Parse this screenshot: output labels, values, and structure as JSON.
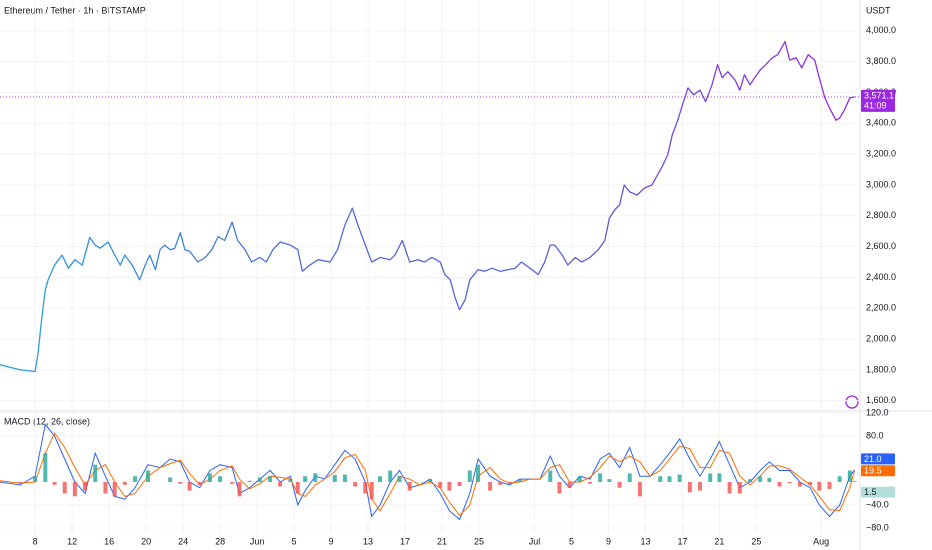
{
  "chart_data": [
    {
      "type": "line",
      "title": "Ethereum / Tether · 1h · BITSTAMP",
      "unit": "USDT",
      "x": [
        4.2,
        6.4,
        8.0,
        8.3,
        8.7,
        9.1,
        9.4,
        10.1,
        10.9,
        11.6,
        12.3,
        13.1,
        13.9,
        14.5,
        15.0,
        15.9,
        16.6,
        17.2,
        17.7,
        18.5,
        19.3,
        19.9,
        20.4,
        21.0,
        21.5,
        22.0,
        22.6,
        23.1,
        23.7,
        24.2,
        24.7,
        25.6,
        26.4,
        27.1,
        27.8,
        28.5,
        29.3,
        29.9,
        30.7,
        31.4,
        32.3,
        33.0,
        33.7,
        34.5,
        35.6,
        36.4,
        36.9,
        37.7,
        38.6,
        39.9,
        40.7,
        41.5,
        42.3,
        42.9,
        43.7,
        44.4,
        45.3,
        46.4,
        46.9,
        47.7,
        48.5,
        49.4,
        50.1,
        50.9,
        51.8,
        52.3,
        52.9,
        53.4,
        53.9,
        54.5,
        55.0,
        55.9,
        56.6,
        57.4,
        58.3,
        59.1,
        59.9,
        60.6,
        61.5,
        62.4,
        63.1,
        63.7,
        64.2,
        65.0,
        65.6,
        66.4,
        67.1,
        68.0,
        68.9,
        69.6,
        70.1,
        70.7,
        71.2,
        71.7,
        72.3,
        73.1,
        73.9,
        74.7,
        75.3,
        75.9,
        76.4,
        76.9,
        77.5,
        77.9,
        78.6,
        79.2,
        79.9,
        80.5,
        81.2,
        81.8,
        82.3,
        82.9,
        83.7,
        84.2,
        84.7,
        85.3,
        85.8,
        86.4,
        87.0,
        87.7,
        88.3,
        89.1,
        89.6,
        90.3,
        90.9,
        91.6,
        92.3,
        92.8,
        93.4,
        93.9,
        94.6,
        95.0,
        95.5,
        96.1,
        96.6
      ],
      "series": [
        {
          "values": [
            1833,
            1800,
            1790,
            1900,
            2125,
            2320,
            2385,
            2480,
            2545,
            2460,
            2515,
            2480,
            2660,
            2610,
            2590,
            2630,
            2545,
            2480,
            2545,
            2480,
            2385,
            2480,
            2545,
            2450,
            2580,
            2610,
            2580,
            2590,
            2690,
            2580,
            2570,
            2500,
            2530,
            2580,
            2665,
            2640,
            2760,
            2640,
            2580,
            2500,
            2530,
            2500,
            2580,
            2630,
            2610,
            2580,
            2440,
            2480,
            2515,
            2500,
            2580,
            2740,
            2850,
            2740,
            2610,
            2500,
            2530,
            2515,
            2545,
            2640,
            2500,
            2515,
            2500,
            2530,
            2500,
            2420,
            2385,
            2270,
            2190,
            2255,
            2385,
            2450,
            2440,
            2460,
            2440,
            2450,
            2460,
            2500,
            2460,
            2420,
            2500,
            2610,
            2610,
            2545,
            2480,
            2530,
            2500,
            2530,
            2580,
            2640,
            2785,
            2840,
            2870,
            3000,
            2955,
            2935,
            2980,
            3000,
            3065,
            3130,
            3195,
            3325,
            3420,
            3500,
            3630,
            3585,
            3615,
            3540,
            3650,
            3780,
            3695,
            3735,
            3680,
            3615,
            3715,
            3650,
            3695,
            3745,
            3780,
            3825,
            3845,
            3930,
            3810,
            3825,
            3760,
            3845,
            3810,
            3695,
            3565,
            3500,
            3420,
            3435,
            3485,
            3565,
            3571.1
          ],
          "colors": [
            "#25a3e2",
            "#4f6fd9",
            "#5a5fd8",
            "#a020f0"
          ],
          "last_label": "3,571.1",
          "countdown": "41:09",
          "label_color": "#9c27e0"
        }
      ],
      "xlim": [
        4.2,
        97.2
      ],
      "ylim": [
        1540,
        4200
      ],
      "yticks": [
        {
          "value": 1600,
          "label": "1,600.0"
        },
        {
          "value": 1800,
          "label": "1,800.0"
        },
        {
          "value": 2000,
          "label": "2,000.0"
        },
        {
          "value": 2200,
          "label": "2,200.0"
        },
        {
          "value": 2400,
          "label": "2,400.0"
        },
        {
          "value": 2600,
          "label": "2,600.0"
        },
        {
          "value": 2800,
          "label": "2,800.0"
        },
        {
          "value": 3000,
          "label": "3,000.0"
        },
        {
          "value": 3200,
          "label": "3,200.0"
        },
        {
          "value": 3400,
          "label": "3,400.0"
        },
        {
          "value": 3600,
          "label": "3,600.0"
        },
        {
          "value": 3800,
          "label": "3,800.0"
        },
        {
          "value": 4000,
          "label": "4,000.0"
        }
      ],
      "grid": true
    },
    {
      "type": "macd",
      "title": "MACD (12, 26, close)",
      "x": [
        4.2,
        6.4,
        8.0,
        9.1,
        10.1,
        11.2,
        12.3,
        13.4,
        14.5,
        15.6,
        16.6,
        17.7,
        18.8,
        20.2,
        21.5,
        22.6,
        23.7,
        24.7,
        25.8,
        26.9,
        28.0,
        29.3,
        30.1,
        31.2,
        32.3,
        33.4,
        34.5,
        35.6,
        36.4,
        37.2,
        38.3,
        39.3,
        40.4,
        41.5,
        42.6,
        43.7,
        44.4,
        45.3,
        46.4,
        47.4,
        48.5,
        49.6,
        50.7,
        51.8,
        52.8,
        53.9,
        55.0,
        55.9,
        57.2,
        58.3,
        59.3,
        60.4,
        61.5,
        62.6,
        63.7,
        64.7,
        65.8,
        66.9,
        68.0,
        69.1,
        70.1,
        71.2,
        72.3,
        73.4,
        74.5,
        75.6,
        76.6,
        77.7,
        78.8,
        79.9,
        81.0,
        82.0,
        83.1,
        84.2,
        85.3,
        86.4,
        87.4,
        88.5,
        89.6,
        90.7,
        91.8,
        92.8,
        93.9,
        95.0,
        96.1,
        96.6
      ],
      "series": [
        {
          "kind": "histogram",
          "color": "#26a69a",
          "negative_color": "#ef5350",
          "label_color": "#b2dfdb",
          "last_label": "1.5",
          "values": [
            -2,
            -3,
            10,
            50,
            -5,
            -20,
            -25,
            -15,
            30,
            -20,
            -25,
            -5,
            10,
            20,
            0,
            8,
            -3,
            -15,
            -5,
            15,
            10,
            -3,
            -25,
            2,
            8,
            10,
            -8,
            5,
            -20,
            10,
            15,
            0,
            12,
            13,
            -8,
            -20,
            -30,
            10,
            20,
            10,
            -15,
            0,
            5,
            -10,
            -15,
            -7,
            20,
            30,
            -15,
            -5,
            -3,
            5,
            0,
            0,
            20,
            -20,
            -10,
            10,
            -3,
            15,
            5,
            -10,
            15,
            -25,
            0,
            10,
            10,
            13,
            -18,
            -15,
            15,
            15,
            -20,
            -20,
            5,
            10,
            7,
            -8,
            -2,
            -8,
            -5,
            -15,
            -12,
            10,
            20,
            1.5
          ]
        },
        {
          "kind": "line",
          "color": "#ff6d00",
          "last_label": "19.5",
          "values": [
            2,
            -2,
            0,
            50,
            85,
            60,
            25,
            -5,
            20,
            30,
            0,
            -25,
            -20,
            10,
            25,
            32,
            38,
            15,
            -5,
            5,
            20,
            28,
            5,
            -12,
            -3,
            10,
            8,
            5,
            -20,
            -25,
            -5,
            5,
            18,
            42,
            48,
            20,
            -30,
            -50,
            -20,
            10,
            5,
            -5,
            0,
            -10,
            -35,
            -58,
            -40,
            10,
            25,
            5,
            -2,
            0,
            5,
            5,
            25,
            30,
            0,
            0,
            8,
            25,
            45,
            35,
            45,
            35,
            10,
            20,
            40,
            62,
            58,
            25,
            25,
            55,
            50,
            10,
            -5,
            10,
            28,
            28,
            22,
            8,
            -5,
            -25,
            -48,
            -50,
            -10,
            19.5
          ]
        },
        {
          "kind": "line",
          "color": "#2962ff",
          "last_label": "21.0",
          "values": [
            0,
            -5,
            10,
            100,
            80,
            40,
            0,
            -20,
            50,
            10,
            -25,
            -30,
            -10,
            30,
            25,
            40,
            35,
            0,
            -10,
            20,
            30,
            25,
            -20,
            -10,
            5,
            20,
            0,
            10,
            -40,
            -15,
            10,
            5,
            30,
            55,
            40,
            0,
            -60,
            -40,
            0,
            20,
            -10,
            -5,
            5,
            -20,
            -50,
            -65,
            -20,
            40,
            10,
            0,
            -5,
            5,
            5,
            5,
            45,
            10,
            -10,
            10,
            5,
            40,
            50,
            25,
            60,
            10,
            10,
            30,
            50,
            75,
            40,
            10,
            40,
            70,
            30,
            -10,
            0,
            20,
            35,
            20,
            20,
            0,
            -10,
            -40,
            -60,
            -40,
            10,
            21
          ]
        }
      ],
      "xlim": [
        4.2,
        97.2
      ],
      "ylim": [
        -97.4,
        121.7
      ],
      "yticks": [
        {
          "value": 120,
          "label": "120.0"
        },
        {
          "value": 80,
          "label": "80.0"
        },
        {
          "value": -40,
          "label": "−40.0"
        },
        {
          "value": -80,
          "label": "−80.0"
        }
      ],
      "xticks": [
        8,
        12,
        16,
        20,
        24,
        28,
        {
          "value": 32,
          "label": "Jun"
        },
        {
          "value": 36,
          "label": "5"
        },
        {
          "value": 40,
          "label": "9"
        },
        {
          "value": 44,
          "label": "13"
        },
        {
          "value": 48,
          "label": "17"
        },
        {
          "value": 52,
          "label": "21"
        },
        {
          "value": 56,
          "label": "25"
        },
        {
          "value": 62,
          "label": "Jul"
        },
        {
          "value": 66,
          "label": "5"
        },
        {
          "value": 70,
          "label": "9"
        },
        {
          "value": 74,
          "label": "13"
        },
        {
          "value": 78,
          "label": "17"
        },
        {
          "value": 82,
          "label": "21"
        },
        {
          "value": 86,
          "label": "25"
        },
        {
          "value": 93,
          "label": "Aug"
        }
      ],
      "grid": true
    }
  ]
}
